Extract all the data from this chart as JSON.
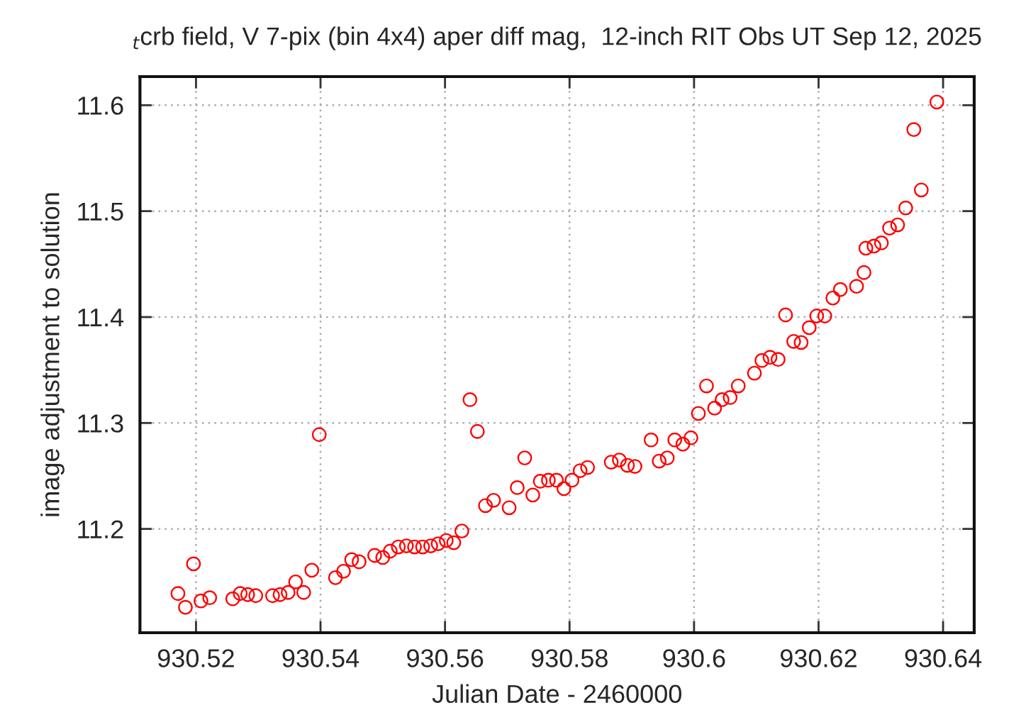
{
  "chart_data": {
    "type": "scatter",
    "title": "$_{t}$crb field, V 7-pix (bin 4x4) aper diff mag,  12-inch RIT Obs UT Sep 12, 2025",
    "xlabel": "Julian Date - 2460000",
    "ylabel": "image adjustment to solution",
    "x": [
      930.5171,
      930.5183,
      930.5196,
      930.5208,
      930.5222,
      930.5259,
      930.5271,
      930.5283,
      930.5296,
      930.5323,
      930.5335,
      930.5348,
      930.536,
      930.5373,
      930.5386,
      930.5398,
      930.5424,
      930.5437,
      930.545,
      930.5462,
      930.5487,
      930.55,
      930.5512,
      930.5525,
      930.5538,
      930.5551,
      930.5564,
      930.5577,
      930.5589,
      930.5602,
      930.5614,
      930.5627,
      930.564,
      930.5652,
      930.5665,
      930.5678,
      930.5703,
      930.5716,
      930.5728,
      930.5741,
      930.5753,
      930.5766,
      930.5779,
      930.5791,
      930.5804,
      930.5817,
      930.5829,
      930.5867,
      930.588,
      930.5893,
      930.5905,
      930.5931,
      930.5944,
      930.5957,
      930.5969,
      930.5982,
      930.5995,
      930.6007,
      930.602,
      930.6033,
      930.6045,
      930.6058,
      930.6071,
      930.6097,
      930.6109,
      930.6122,
      930.6135,
      930.6147,
      930.616,
      930.6172,
      930.6185,
      930.6197,
      930.621,
      930.6223,
      930.6235,
      930.6261,
      930.6273,
      930.6276,
      930.6289,
      930.6301,
      930.6314,
      930.6327,
      930.634,
      930.6353,
      930.6365,
      930.639
    ],
    "series": [
      {
        "color": "#ff0000",
        "values": [
          11.139,
          11.126,
          11.167,
          11.132,
          11.135,
          11.134,
          11.139,
          11.138,
          11.137,
          11.137,
          11.138,
          11.14,
          11.15,
          11.14,
          11.161,
          11.289,
          11.154,
          11.16,
          11.171,
          11.169,
          11.175,
          11.173,
          11.179,
          11.183,
          11.184,
          11.183,
          11.183,
          11.184,
          11.186,
          11.189,
          11.187,
          11.198,
          11.322,
          11.292,
          11.222,
          11.227,
          11.22,
          11.239,
          11.267,
          11.232,
          11.245,
          11.246,
          11.246,
          11.238,
          11.246,
          11.255,
          11.258,
          11.263,
          11.265,
          11.26,
          11.259,
          11.284,
          11.264,
          11.267,
          11.284,
          11.28,
          11.286,
          11.309,
          11.335,
          11.314,
          11.322,
          11.324,
          11.335,
          11.347,
          11.359,
          11.362,
          11.36,
          11.402,
          11.377,
          11.376,
          11.39,
          11.401,
          11.401,
          11.418,
          11.426,
          11.429,
          11.442,
          11.465,
          11.467,
          11.47,
          11.484,
          11.487,
          11.503,
          11.577,
          11.52,
          11.603
        ]
      }
    ],
    "xlim": [
      930.511,
      930.645
    ],
    "ylim": [
      11.102,
      11.627
    ],
    "xticks": [
      930.52,
      930.54,
      930.56,
      930.58,
      930.6,
      930.62,
      930.64
    ],
    "yticks": [
      11.2,
      11.3,
      11.4,
      11.5,
      11.6
    ],
    "grid": true,
    "marker": "circle"
  }
}
